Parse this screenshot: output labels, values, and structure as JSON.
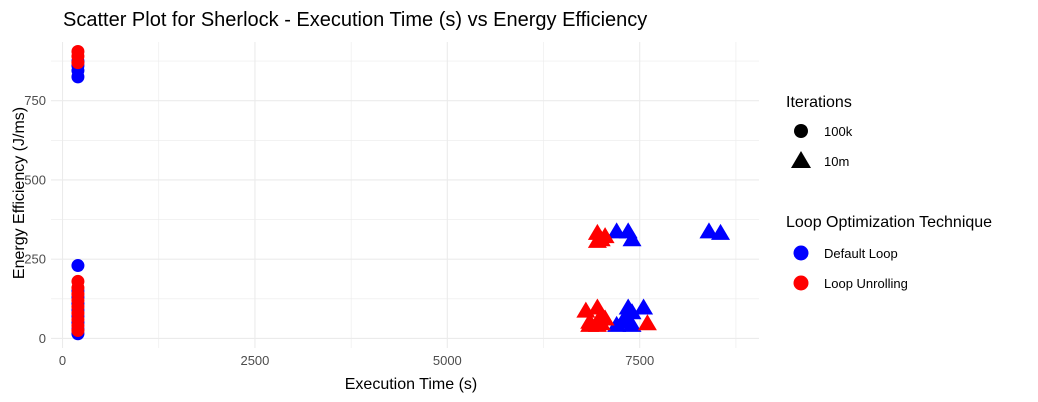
{
  "chart_data": {
    "type": "scatter",
    "title": "Scatter Plot for Sherlock - Execution Time (s) vs Energy Efficiency",
    "xlabel": "Execution Time (s)",
    "ylabel": "Energy Efficiency (J/ms)",
    "xlim": [
      -150,
      9050
    ],
    "ylim": [
      -30,
      935
    ],
    "x_ticks": [
      0,
      2500,
      5000,
      7500
    ],
    "x_tick_labels": [
      "0",
      "2500",
      "5000",
      "7500"
    ],
    "y_ticks": [
      0,
      250,
      500,
      750
    ],
    "y_tick_labels": [
      "0",
      "250",
      "500",
      "750"
    ],
    "grid": true,
    "legend_position": "right",
    "legends": [
      {
        "title": "Iterations",
        "entries": [
          {
            "label": "100k",
            "shape": "circle"
          },
          {
            "label": "10m",
            "shape": "triangle"
          }
        ]
      },
      {
        "title": "Loop Optimization Technique",
        "entries": [
          {
            "label": "Default Loop",
            "color": "#0000ff"
          },
          {
            "label": "Loop Unrolling",
            "color": "#ff0000"
          }
        ]
      }
    ],
    "colors": {
      "Default Loop": "#0000ff",
      "Loop Unrolling": "#ff0000",
      "grid": "#ebebeb"
    },
    "series": [
      {
        "technique": "Default Loop",
        "iterations": "100k",
        "shape": "circle",
        "points": [
          [
            200,
            825
          ],
          [
            200,
            845
          ],
          [
            200,
            860
          ],
          [
            200,
            875
          ],
          [
            200,
            230
          ],
          [
            200,
            150
          ],
          [
            200,
            130
          ],
          [
            200,
            110
          ],
          [
            200,
            90
          ],
          [
            200,
            70
          ],
          [
            200,
            50
          ],
          [
            200,
            30
          ],
          [
            200,
            15
          ]
        ]
      },
      {
        "technique": "Loop Unrolling",
        "iterations": "100k",
        "shape": "circle",
        "points": [
          [
            200,
            905
          ],
          [
            200,
            890
          ],
          [
            200,
            870
          ],
          [
            200,
            180
          ],
          [
            200,
            160
          ],
          [
            200,
            140
          ],
          [
            200,
            120
          ],
          [
            200,
            100
          ],
          [
            200,
            80
          ],
          [
            200,
            60
          ],
          [
            200,
            40
          ],
          [
            200,
            25
          ]
        ]
      },
      {
        "technique": "Default Loop",
        "iterations": "10m",
        "shape": "triangle",
        "points": [
          [
            7200,
            335
          ],
          [
            7350,
            335
          ],
          [
            7400,
            310
          ],
          [
            8400,
            335
          ],
          [
            8550,
            330
          ],
          [
            7200,
            40
          ],
          [
            7350,
            95
          ],
          [
            7350,
            50
          ],
          [
            7400,
            80
          ],
          [
            7400,
            40
          ],
          [
            7550,
            95
          ],
          [
            7300,
            60
          ]
        ]
      },
      {
        "technique": "Loop Unrolling",
        "iterations": "10m",
        "shape": "triangle",
        "points": [
          [
            6950,
            330
          ],
          [
            7000,
            310
          ],
          [
            7050,
            320
          ],
          [
            6950,
            305
          ],
          [
            6800,
            85
          ],
          [
            6850,
            50
          ],
          [
            6850,
            40
          ],
          [
            6950,
            95
          ],
          [
            7000,
            70
          ],
          [
            7050,
            60
          ],
          [
            6950,
            40
          ],
          [
            7000,
            45
          ],
          [
            7600,
            45
          ]
        ]
      }
    ]
  }
}
